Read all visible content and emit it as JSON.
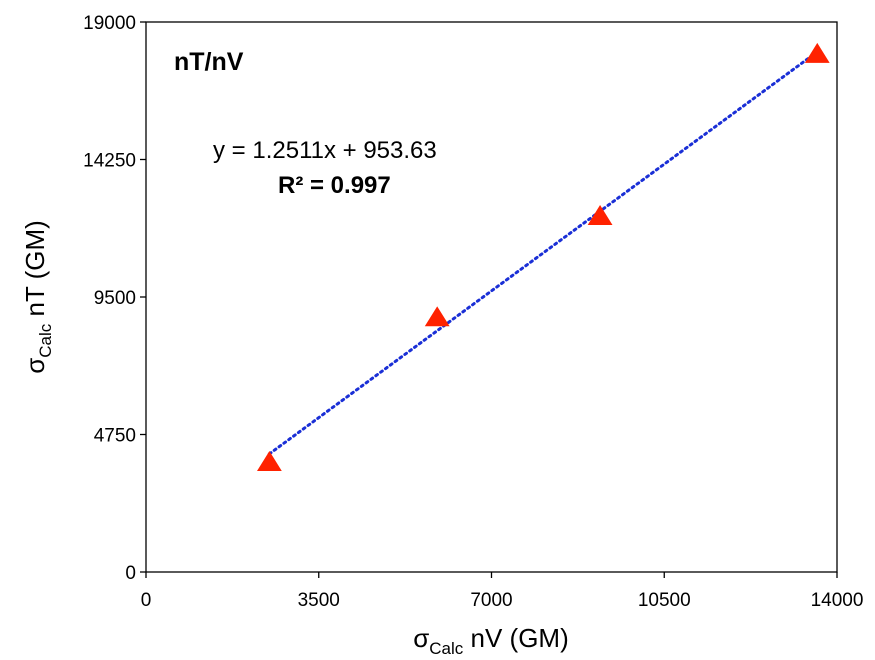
{
  "chart_data": {
    "type": "scatter",
    "panel_label": "nT/nV",
    "xlabel": {
      "sigma": "σ",
      "sub": "Calc",
      "rest": " nV (GM)"
    },
    "ylabel": {
      "sigma": "σ",
      "sub": "Calc",
      "rest": " nT (GM)"
    },
    "xlim": [
      0,
      14000
    ],
    "ylim": [
      0,
      19000
    ],
    "xticks": [
      "0",
      "3500",
      "7000",
      "10500",
      "14000"
    ],
    "yticks": [
      "0",
      "4750",
      "9500",
      "14250",
      "19000"
    ],
    "series": [
      {
        "marker": "triangle",
        "color": "#ff2200",
        "x": [
          2500,
          5900,
          9200,
          13600
        ],
        "y": [
          3800,
          8800,
          12300,
          17900
        ]
      }
    ],
    "trendline": {
      "slope": 1.2511,
      "intercept": 953.63,
      "x_range": [
        2500,
        13600
      ],
      "color": "#1a2fd6",
      "style": "dotted",
      "equation": "y = 1.2511x + 953.63",
      "r2": "R² = 0.997"
    },
    "grid": false
  }
}
